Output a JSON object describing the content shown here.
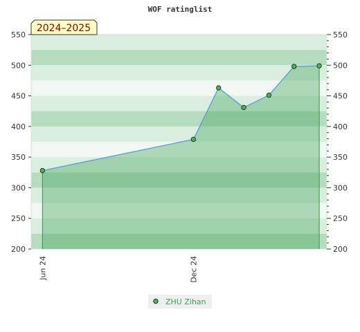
{
  "chart_data": {
    "type": "area",
    "title": "WOF ratinglist",
    "season_label": "2024–2025",
    "ylim": [
      200,
      550
    ],
    "yticks": [
      200,
      250,
      300,
      350,
      400,
      450,
      500,
      550
    ],
    "xticks": [
      {
        "label": "Jun 24",
        "x": 0
      },
      {
        "label": "Dec 24",
        "x": 6
      }
    ],
    "xlim": [
      -0.45,
      11.3
    ],
    "series": [
      {
        "name": "ZHU Zihan",
        "x": [
          0,
          6,
          7,
          8,
          9,
          10,
          11
        ],
        "values": [
          328,
          379,
          463,
          431,
          451,
          498,
          499
        ]
      }
    ],
    "grid": true,
    "legend": "bottom-center",
    "colors": {
      "line": "#5b9bd5",
      "fill": "#3fa35a",
      "marker": "#4fae63",
      "band_light": "#f1f8f3",
      "band_mid": "#d9eedf",
      "band_dark": "#b5dcbf"
    }
  }
}
